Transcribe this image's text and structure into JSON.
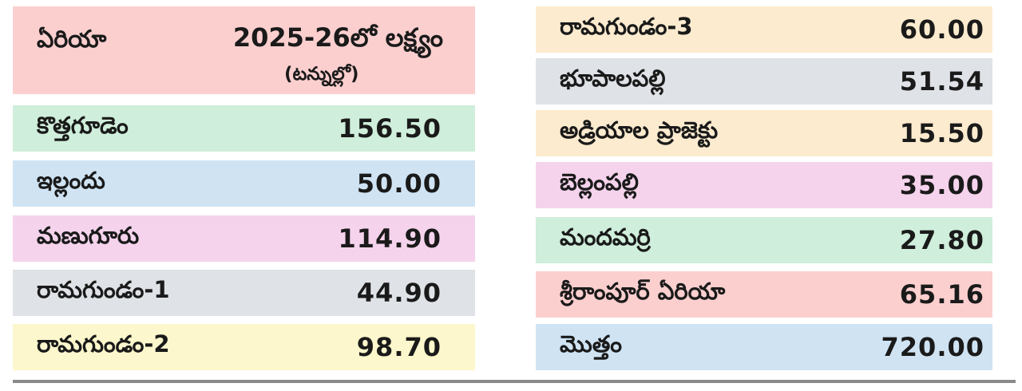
{
  "header": {
    "area_label": "ఏరియా",
    "target_label": "2025-26లో లక్ష్యం",
    "unit_label": "(టన్నుల్లో)"
  },
  "colors": {
    "pink": "#fccfcf",
    "green": "#cfeedb",
    "blue": "#cfe3f3",
    "magenta": "#f5d3ec",
    "gray": "#dfe2e6",
    "yellow": "#fcf7cc",
    "peach": "#fcebcf"
  },
  "left_rows": [
    {
      "name": "కొత్తగూడెం",
      "value": "156.50",
      "color": "#cfeedb"
    },
    {
      "name": "ఇల్లందు",
      "value": "50.00",
      "color": "#cfe3f3"
    },
    {
      "name": "మణుగూరు",
      "value": "114.90",
      "color": "#f5d3ec"
    },
    {
      "name": "రామగుండం-1",
      "value": "44.90",
      "color": "#dfe2e6"
    },
    {
      "name": "రామగుండం-2",
      "value": "98.70",
      "color": "#fcf7cc"
    }
  ],
  "right_rows": [
    {
      "name": "రామగుండం-3",
      "value": "60.00",
      "color": "#fcebcf"
    },
    {
      "name": "భూపాలపల్లి",
      "value": "51.54",
      "color": "#dfe2e6"
    },
    {
      "name": "అడ్రియాల ప్రాజెక్టు",
      "value": "15.50",
      "color": "#fcebcf"
    },
    {
      "name": "బెల్లంపల్లి",
      "value": "35.00",
      "color": "#f5d3ec"
    },
    {
      "name": "మందమర్రి",
      "value": "27.80",
      "color": "#cfeedb"
    },
    {
      "name": "శ్రీరాంపూర్ ఏరియా",
      "value": "65.16",
      "color": "#fccfcf"
    },
    {
      "name": "మొత్తం",
      "value": "720.00",
      "color": "#cfe3f3"
    }
  ]
}
